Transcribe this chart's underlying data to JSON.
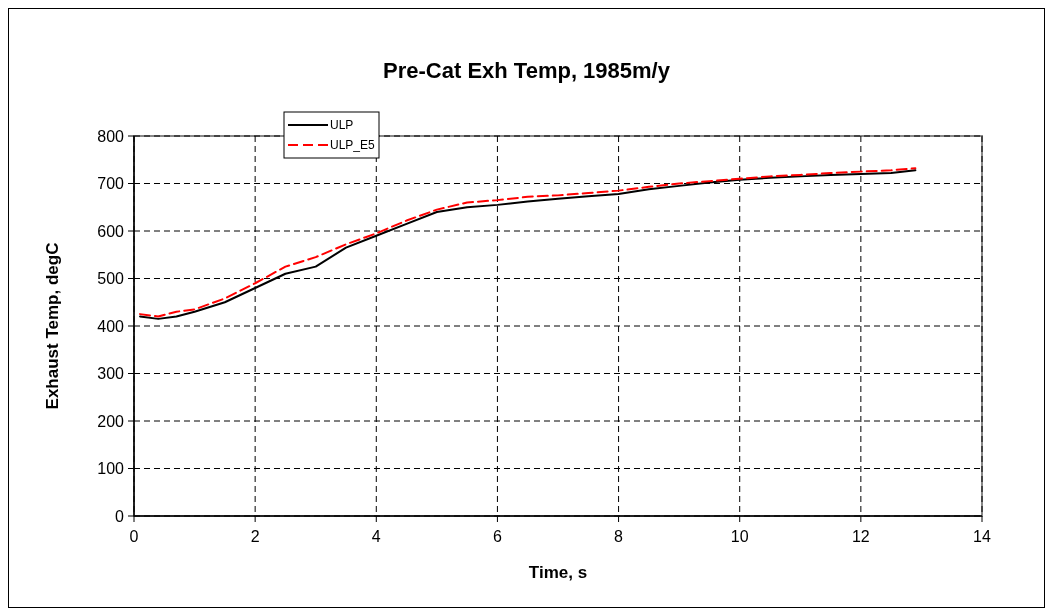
{
  "chart_data": {
    "type": "line",
    "title": "Pre-Cat Exh Temp, 1985m/y",
    "xlabel": "Time, s",
    "ylabel": "Exhaust Temp, degC",
    "x": [
      0.1,
      0.4,
      0.7,
      1,
      1.5,
      2,
      2.5,
      3,
      3.5,
      4,
      4.5,
      5,
      5.5,
      6,
      6.5,
      7,
      7.5,
      8,
      8.5,
      9,
      9.5,
      10,
      10.5,
      11,
      11.5,
      12,
      12.5,
      12.9
    ],
    "series": [
      {
        "name": "ULP",
        "color": "#000000",
        "line_style": "solid",
        "values": [
          420,
          415,
          420,
          430,
          450,
          480,
          510,
          525,
          565,
          590,
          615,
          640,
          650,
          655,
          662,
          668,
          673,
          678,
          688,
          695,
          702,
          708,
          712,
          715,
          718,
          720,
          722,
          728
        ]
      },
      {
        "name": "ULP_E5",
        "color": "#ff0000",
        "line_style": "dashed",
        "values": [
          425,
          420,
          430,
          435,
          458,
          490,
          525,
          545,
          572,
          595,
          622,
          645,
          660,
          665,
          672,
          675,
          680,
          685,
          693,
          700,
          705,
          710,
          715,
          718,
          722,
          725,
          728,
          732
        ]
      }
    ],
    "xlim": [
      0,
      14
    ],
    "xticks": [
      0,
      2,
      4,
      6,
      8,
      10,
      12,
      14
    ],
    "ylim": [
      0,
      800
    ],
    "yticks": [
      0,
      100,
      200,
      300,
      400,
      500,
      600,
      700,
      800
    ],
    "grid": true,
    "legend": "top left",
    "marker": "none"
  }
}
